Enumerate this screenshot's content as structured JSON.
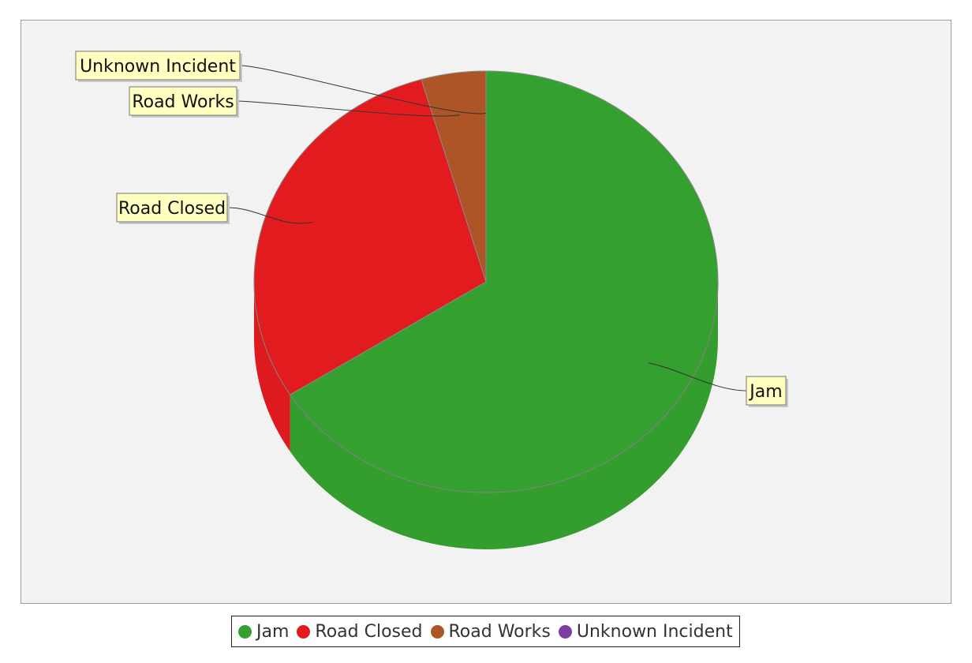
{
  "chart_data": {
    "type": "pie",
    "style": "3d",
    "title": "",
    "slices": [
      {
        "label": "Jam",
        "value": 66,
        "color": "#34a02f"
      },
      {
        "label": "Road Closed",
        "value": 29.5,
        "color": "#e21b1e"
      },
      {
        "label": "Road Works",
        "value": 4.5,
        "color": "#ad5526"
      },
      {
        "label": "Unknown Incident",
        "value": 0,
        "color": "#7a3fa1"
      }
    ],
    "legend_position": "bottom"
  }
}
